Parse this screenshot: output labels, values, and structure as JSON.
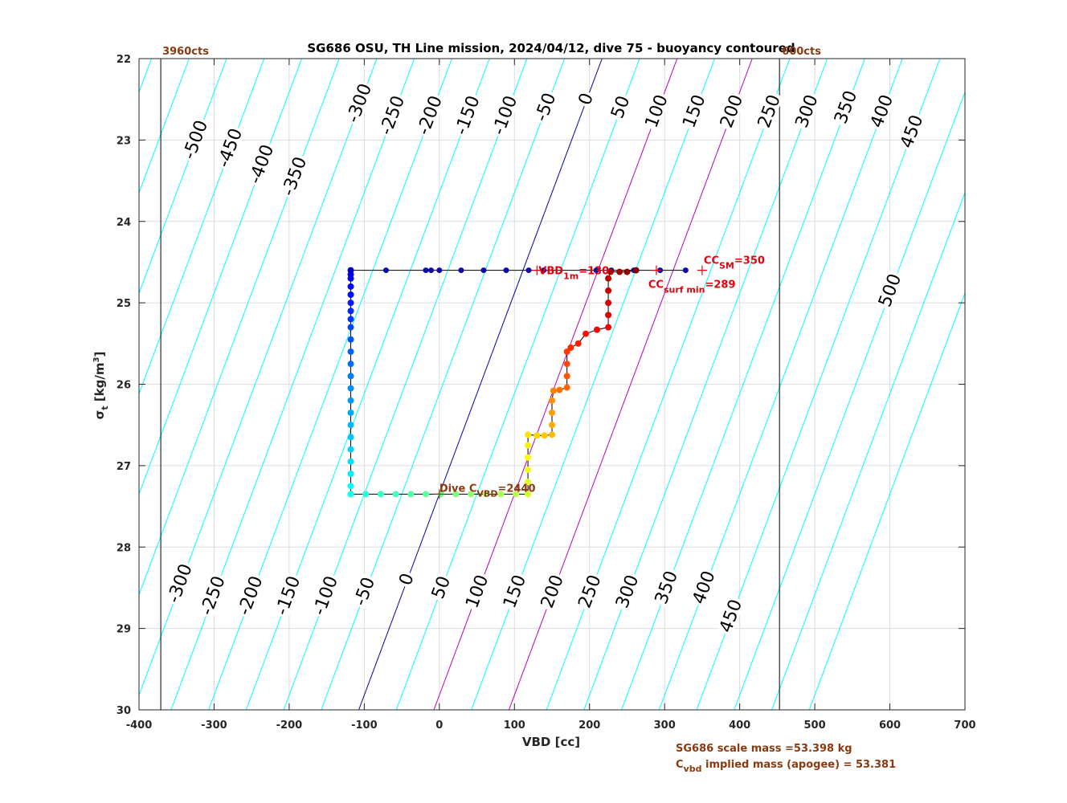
{
  "chart_data": {
    "type": "scatter",
    "title": "SG686 OSU, TH Line mission, 2024/04/12, dive 75 - buoyancy contoured",
    "xlabel": "VBD [cc]",
    "ylabel": "σ t [kg/m 3 ]",
    "xlim": [
      -400,
      700
    ],
    "ylim": [
      30,
      22
    ],
    "y_reversed": true,
    "grid": true,
    "x_ticks": [
      "-400",
      "-300",
      "-200",
      "-100",
      "0",
      "100",
      "200",
      "300",
      "400",
      "500",
      "600",
      "700"
    ],
    "y_ticks": [
      "22",
      "23",
      "24",
      "25",
      "26",
      "27",
      "28",
      "29",
      "30"
    ],
    "vbd_limits": {
      "min_vbd": -371,
      "max_vbd": 453,
      "min_label": "3960cts",
      "max_label": "600cts"
    },
    "buoyancy_contours": {
      "levels": [
        -500,
        -450,
        -400,
        -350,
        -300,
        -250,
        -200,
        -150,
        -100,
        -50,
        0,
        50,
        100,
        150,
        200,
        250,
        300,
        350,
        400,
        450,
        500
      ],
      "cc_per_sigma": 40.5,
      "zero_at_sigma_27_35": 0,
      "color": "#00ffff",
      "highlight_zero_color": "#0000aa",
      "highlight_magenta_levels": [
        100,
        200
      ],
      "highlight_magenta_color": "#bb00bb",
      "upper_labels": [
        {
          "text": "-500",
          "level": -500,
          "sigma": 23.0
        },
        {
          "text": "-450",
          "level": -450,
          "sigma": 23.1
        },
        {
          "text": "-400",
          "level": -400,
          "sigma": 23.3
        },
        {
          "text": "-350",
          "level": -350,
          "sigma": 23.45
        },
        {
          "text": "-300",
          "level": -300,
          "sigma": 22.55
        },
        {
          "text": "-250",
          "level": -250,
          "sigma": 22.7
        },
        {
          "text": "-200",
          "level": -200,
          "sigma": 22.7
        },
        {
          "text": "-150",
          "level": -150,
          "sigma": 22.7
        },
        {
          "text": "-100",
          "level": -100,
          "sigma": 22.7
        },
        {
          "text": "-50",
          "level": -50,
          "sigma": 22.6
        },
        {
          "text": "0",
          "level": 0,
          "sigma": 22.5
        },
        {
          "text": "50",
          "level": 50,
          "sigma": 22.6
        },
        {
          "text": "100",
          "level": 100,
          "sigma": 22.65
        },
        {
          "text": "150",
          "level": 150,
          "sigma": 22.65
        },
        {
          "text": "200",
          "level": 200,
          "sigma": 22.65
        },
        {
          "text": "250",
          "level": 250,
          "sigma": 22.65
        },
        {
          "text": "300",
          "level": 300,
          "sigma": 22.65
        },
        {
          "text": "350",
          "level": 350,
          "sigma": 22.6
        },
        {
          "text": "400",
          "level": 400,
          "sigma": 22.65
        },
        {
          "text": "450",
          "level": 450,
          "sigma": 22.9
        },
        {
          "text": "500",
          "level": 500,
          "sigma": 24.85
        }
      ],
      "lower_labels": [
        {
          "text": "-300",
          "level": -300,
          "sigma": 28.45
        },
        {
          "text": "-250",
          "level": -250,
          "sigma": 28.6
        },
        {
          "text": "-200",
          "level": -200,
          "sigma": 28.6
        },
        {
          "text": "-150",
          "level": -150,
          "sigma": 28.6
        },
        {
          "text": "-100",
          "level": -100,
          "sigma": 28.6
        },
        {
          "text": "-50",
          "level": -50,
          "sigma": 28.55
        },
        {
          "text": "0",
          "level": 0,
          "sigma": 28.4
        },
        {
          "text": "50",
          "level": 50,
          "sigma": 28.5
        },
        {
          "text": "100",
          "level": 100,
          "sigma": 28.55
        },
        {
          "text": "150",
          "level": 150,
          "sigma": 28.55
        },
        {
          "text": "200",
          "level": 200,
          "sigma": 28.55
        },
        {
          "text": "250",
          "level": 250,
          "sigma": 28.55
        },
        {
          "text": "300",
          "level": 300,
          "sigma": 28.55
        },
        {
          "text": "350",
          "level": 350,
          "sigma": 28.5
        },
        {
          "text": "400",
          "level": 400,
          "sigma": 28.5
        },
        {
          "text": "450",
          "level": 450,
          "sigma": 28.85
        }
      ]
    },
    "surface_points": {
      "sigma": 24.6,
      "vbd": [
        -118,
        -71,
        -18,
        -11,
        0,
        29,
        59,
        89,
        119,
        139,
        209,
        229,
        259,
        294,
        328
      ],
      "color": "#0a0aaa"
    },
    "dive_points": {
      "colormap": "jet",
      "descent_vbd": -118,
      "descent_sigma": [
        24.6,
        24.65,
        24.7,
        24.8,
        24.9,
        25.0,
        25.1,
        25.2,
        25.3,
        25.45,
        25.6,
        25.75,
        25.9,
        26.05,
        26.2,
        26.35,
        26.5,
        26.65,
        26.8,
        26.95,
        27.1,
        27.25,
        27.35
      ],
      "bottom_sigma": 27.35,
      "bottom_vbd": [
        -118,
        -98,
        -78,
        -58,
        -38,
        -18,
        2,
        22,
        42,
        62,
        82,
        102,
        118
      ],
      "ascent_path": [
        [
          118,
          27.35
        ],
        [
          118,
          27.2
        ],
        [
          118,
          27.05
        ],
        [
          118,
          26.9
        ],
        [
          118,
          26.75
        ],
        [
          118,
          26.62
        ],
        [
          130,
          26.63
        ],
        [
          140,
          26.63
        ],
        [
          150,
          26.62
        ],
        [
          150,
          26.5
        ],
        [
          150,
          26.35
        ],
        [
          150,
          26.2
        ],
        [
          152,
          26.08
        ],
        [
          160,
          26.07
        ],
        [
          170,
          26.04
        ],
        [
          170,
          25.9
        ],
        [
          170,
          25.75
        ],
        [
          170,
          25.6
        ],
        [
          175,
          25.55
        ],
        [
          185,
          25.5
        ],
        [
          195,
          25.38
        ],
        [
          210,
          25.33
        ],
        [
          225,
          25.3
        ],
        [
          225,
          25.15
        ],
        [
          225,
          25.0
        ],
        [
          225,
          24.85
        ],
        [
          225,
          24.7
        ],
        [
          228,
          24.62
        ],
        [
          240,
          24.62
        ],
        [
          250,
          24.62
        ],
        [
          262,
          24.6
        ]
      ]
    },
    "annotations": {
      "vbd_1m": {
        "prefix": "VBD",
        "sub": "1m",
        "suffix": "=130",
        "vbd": 130,
        "sigma": 24.6
      },
      "cc_sm": {
        "prefix": "CC",
        "sub": "SM",
        "suffix": "=350",
        "vbd": 350,
        "sigma": 24.6
      },
      "cc_surf_min": {
        "prefix": "CC",
        "sub": "surf min",
        "suffix": "=289",
        "vbd": 289,
        "sigma": 24.6
      },
      "dive_cvbd": {
        "prefix": "Dive C",
        "sub": "VBD",
        "suffix": "=2440",
        "vbd": 0,
        "sigma": 27.35
      }
    },
    "footer": {
      "line1": "SG686 scale mass =53.398 kg",
      "line2_prefix": "C",
      "line2_sub": "vbd",
      "line2_suffix": " implied mass (apogee) = 53.381"
    },
    "colors": {
      "axis": "#262626",
      "grid": "#dcdcdc",
      "limit_line": "#000000",
      "annot_red": "#e8000b",
      "annot_brown": "#8b3a0f"
    }
  }
}
